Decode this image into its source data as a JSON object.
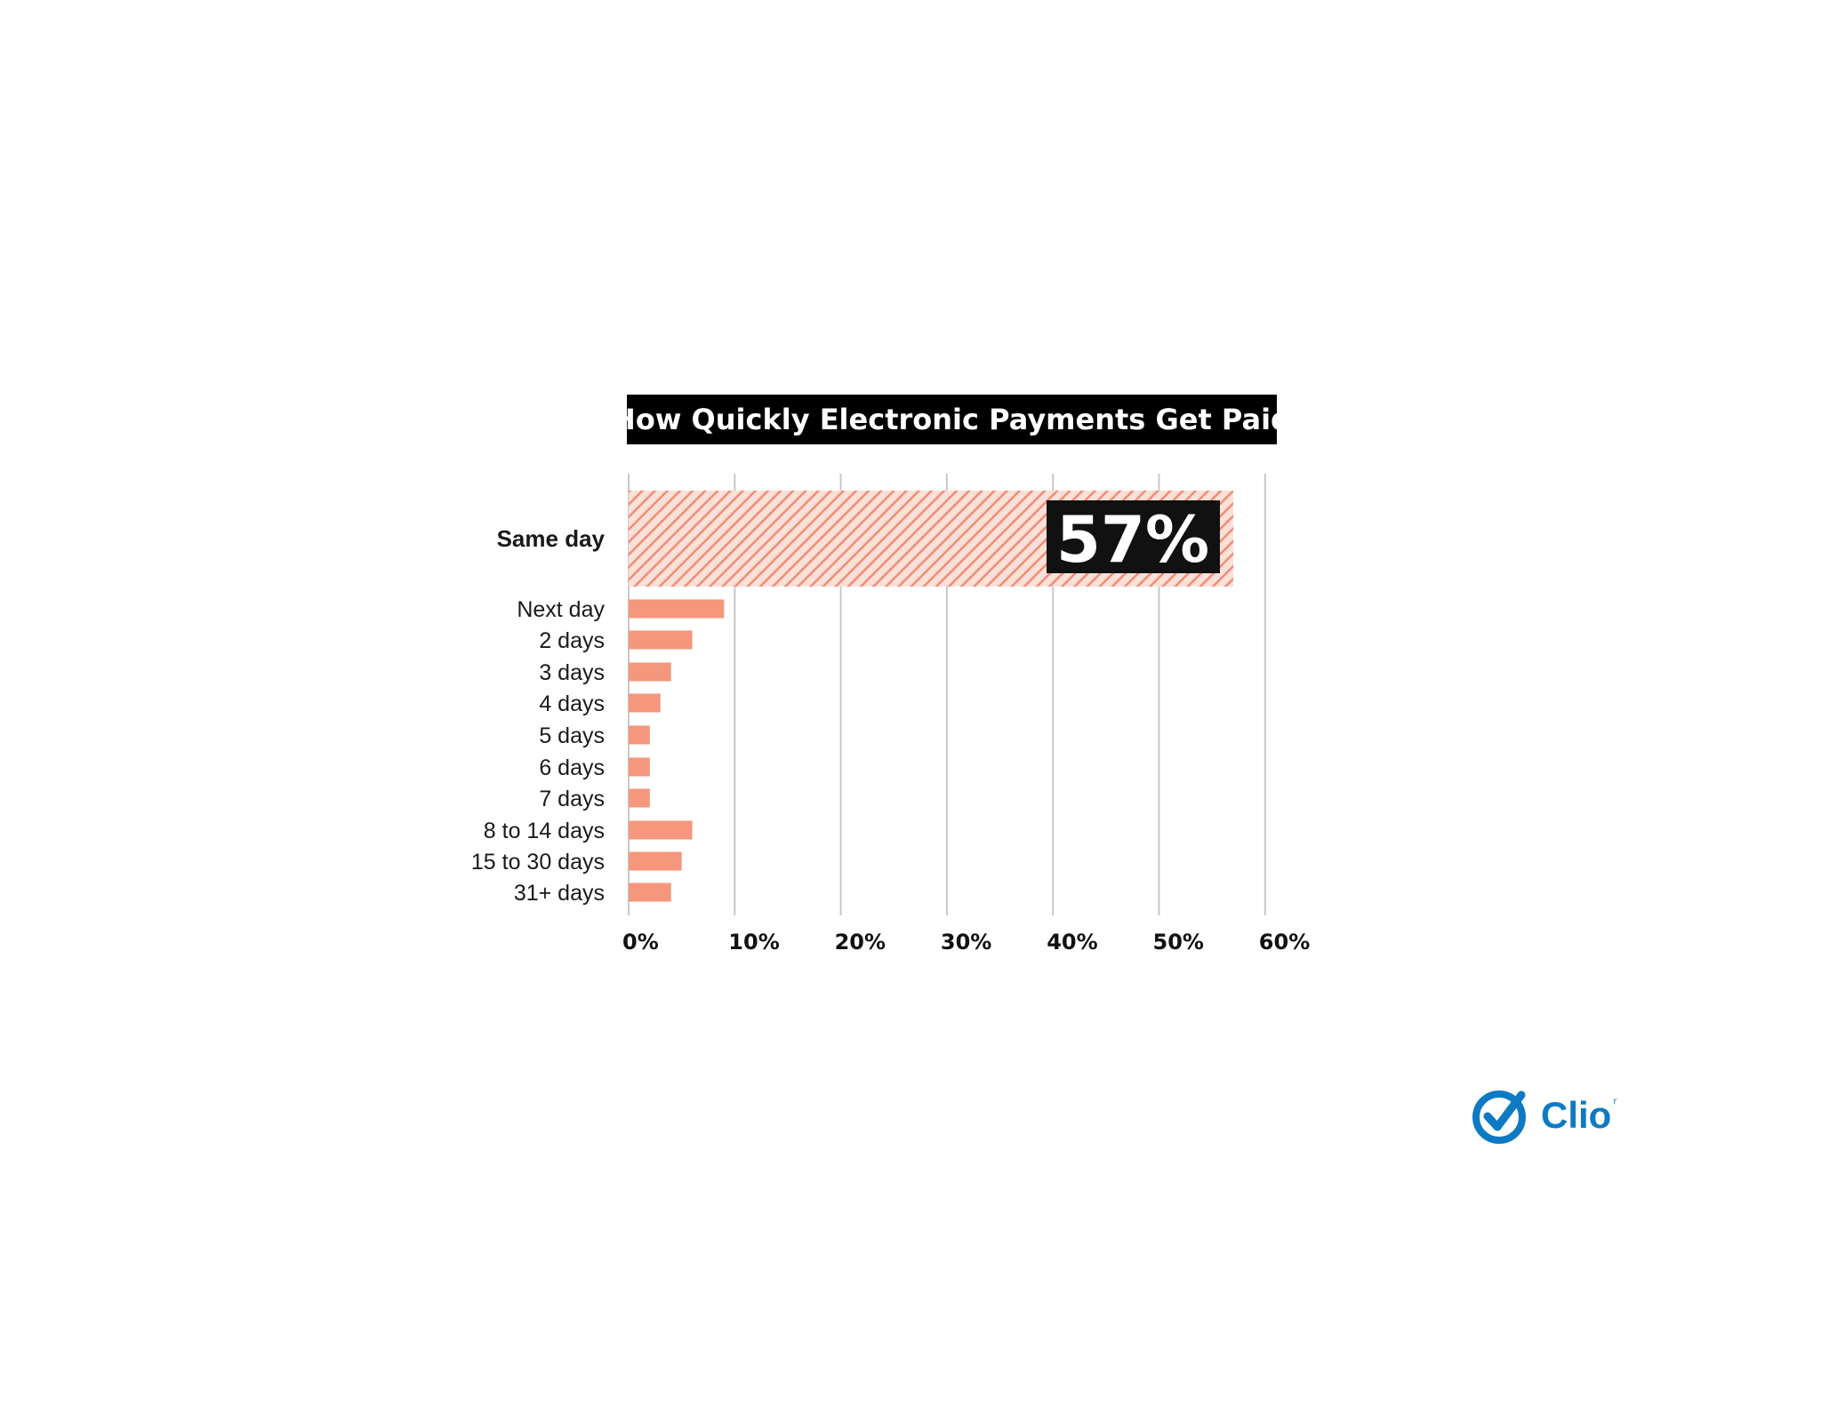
{
  "chart_data": {
    "type": "bar",
    "orientation": "horizontal",
    "title": "How Quickly Electronic Payments Get Paid",
    "categories": [
      "Same day",
      "Next day",
      "2 days",
      "3 days",
      "4 days",
      "5 days",
      "6 days",
      "7 days",
      "8 to 14 days",
      "15 to 30 days",
      "31+ days"
    ],
    "values": [
      57,
      9,
      6,
      4,
      3,
      2,
      2,
      2,
      6,
      5,
      4
    ],
    "xlim": [
      0,
      60
    ],
    "x_ticks": [
      "0%",
      "10%",
      "20%",
      "30%",
      "40%",
      "50%",
      "60%"
    ],
    "grid": "vertical",
    "highlight": {
      "category": "Same day",
      "label": "57%"
    },
    "xlabel": "",
    "ylabel": ""
  },
  "colors": {
    "bar": "#f4977c",
    "highlight_stripe": "#f08c76",
    "title_bg": "#000000",
    "title_text": "#ffffff",
    "grid": "#c8c8c8",
    "brand": "#0e7ac4"
  },
  "logo": {
    "text": "Clio",
    "mark": "r",
    "icon": "checkmark-circle-icon"
  }
}
